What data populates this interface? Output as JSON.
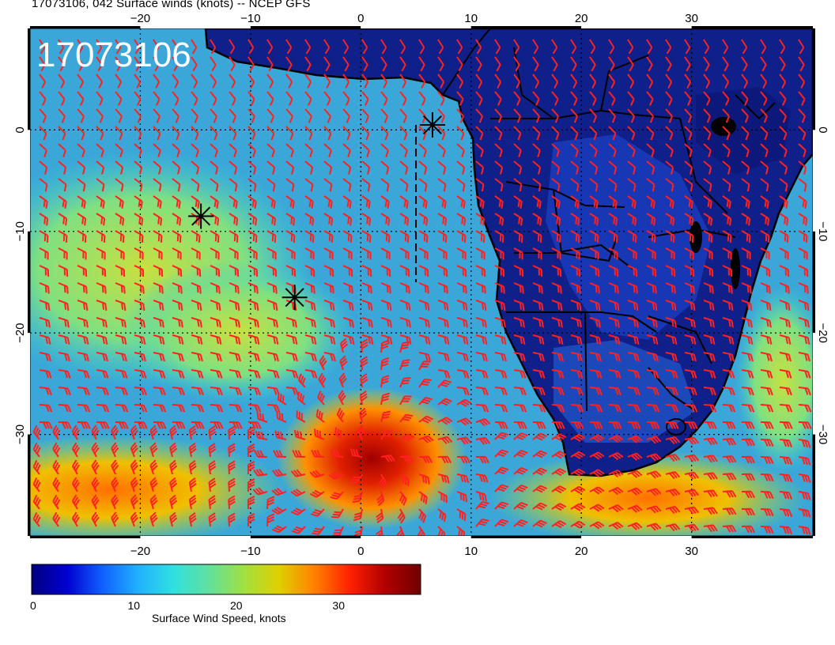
{
  "title": "17073106, 042 Surface winds (knots) -- NCEP GFS",
  "stamp": "17073106",
  "map": {
    "lon_range": [
      -30,
      41
    ],
    "lat_range": [
      -40,
      10
    ],
    "lon_ticks": [
      "−20",
      "−10",
      "0",
      "10",
      "20",
      "30"
    ],
    "lon_tick_values": [
      -20,
      -10,
      0,
      10,
      20,
      30
    ],
    "lat_ticks": [
      "0",
      "−10",
      "−20",
      "−30"
    ],
    "lat_tick_values": [
      0,
      -10,
      -20,
      -30
    ],
    "gridlines": "dotted",
    "land_color": "#10208a",
    "ocean_color": "#3aa7d8",
    "high_wind_color": "#c8102e",
    "barb_color": "#ff2020",
    "coastline_color": "#000000",
    "star_markers": [
      {
        "lon": 6.5,
        "lat": 0.5
      },
      {
        "lon": -14.5,
        "lat": -8.5
      },
      {
        "lon": -6.0,
        "lat": -16.5
      }
    ],
    "track_line": {
      "lon": 5.0,
      "lat_from": 0.5,
      "lat_to": -15.0
    }
  },
  "colorbar": {
    "label": "Surface Wind Speed, knots",
    "min": 0,
    "max": 38,
    "ticks": [
      "0",
      "10",
      "20",
      "30"
    ],
    "tick_values": [
      0,
      10,
      20,
      30
    ],
    "colors": [
      "#00007f",
      "#0000d0",
      "#1060ff",
      "#20b0ff",
      "#30e0e0",
      "#60e0a0",
      "#a0e040",
      "#e0d000",
      "#ff8000",
      "#ff2000",
      "#b00000",
      "#700000"
    ]
  }
}
